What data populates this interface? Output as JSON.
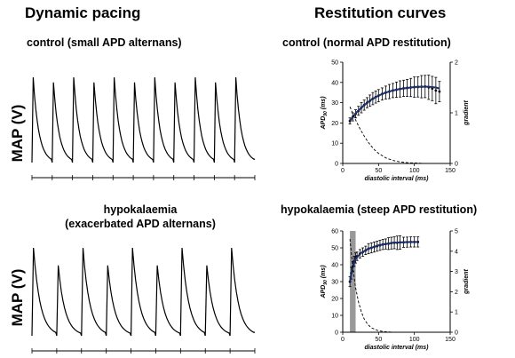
{
  "headings": {
    "left": "Dynamic pacing",
    "right": "Restitution curves"
  },
  "panels": {
    "top_left": "control (small APD alternans)",
    "bottom_left_line1": "hypokalaemia",
    "bottom_left_line2": "(exacerbated APD alternans)",
    "top_right": "control (normal APD restitution)",
    "bottom_right": "hypokalaemia (steep APD restitution)"
  },
  "traces": {
    "y_label": "MAP (V)",
    "control": {
      "beats": 11,
      "amplitude": 0.78,
      "alternans": 0.03
    },
    "hypokalaemia": {
      "beats": 9,
      "amplitude": 0.9,
      "alternans": 0.1
    }
  },
  "chart_data": [
    {
      "type": "scatter",
      "title": "control (normal APD restitution)",
      "xlabel": "diastolic interval (ms)",
      "ylabel": "APD90 (ms)",
      "ylabel_main": "APD",
      "ylabel_sub": "90",
      "y2label": "gradient",
      "xlim": [
        0,
        150
      ],
      "ylim": [
        0,
        50
      ],
      "y2lim": [
        0,
        2
      ],
      "x_ticks": [
        "0",
        "50",
        "100",
        "150"
      ],
      "y_ticks": [
        "0",
        "10",
        "20",
        "30",
        "40",
        "50"
      ],
      "y2_ticks": [
        "0",
        "1",
        "2"
      ],
      "series": [
        {
          "role": "apd_mean",
          "x": [
            10,
            14,
            18,
            22,
            26,
            30,
            34,
            38,
            42,
            46,
            50,
            55,
            60,
            65,
            70,
            75,
            80,
            85,
            90,
            95,
            100,
            105,
            110,
            115,
            120,
            125,
            130,
            135
          ],
          "y": [
            21,
            23,
            24.5,
            26,
            27.5,
            28.8,
            30,
            31,
            32,
            32.8,
            33.5,
            34.3,
            35,
            35.5,
            36,
            36.4,
            36.8,
            37.1,
            37.3,
            37.5,
            37.7,
            37.8,
            37.9,
            38,
            37.6,
            37,
            36,
            35.5
          ],
          "error": [
            1.5,
            2,
            2,
            2.2,
            2.5,
            2.5,
            2.5,
            2.8,
            3,
            3,
            3,
            3,
            3.2,
            3.5,
            3.5,
            3.8,
            4,
            4,
            4.2,
            4.5,
            5,
            5,
            5.5,
            5.5,
            6,
            6,
            6.5,
            5
          ]
        },
        {
          "role": "fit",
          "x": [
            10,
            20,
            30,
            40,
            50,
            60,
            70,
            80,
            90,
            100,
            110,
            120,
            130,
            135
          ],
          "y": [
            21,
            25.5,
            28.8,
            31.5,
            33.5,
            35,
            36,
            36.8,
            37.3,
            37.7,
            37.9,
            37.9,
            37.5,
            37
          ]
        },
        {
          "role": "gradient",
          "axis": "right",
          "x": [
            10,
            15,
            20,
            25,
            30,
            35,
            40,
            45,
            50,
            60,
            70,
            80,
            90,
            100,
            110
          ],
          "y": [
            1.12,
            0.95,
            0.8,
            0.66,
            0.54,
            0.43,
            0.34,
            0.26,
            0.2,
            0.11,
            0.06,
            0.03,
            0.015,
            0.008,
            0.004
          ]
        }
      ]
    },
    {
      "type": "scatter",
      "title": "hypokalaemia (steep APD restitution)",
      "xlabel": "diastolic interval (ms)",
      "ylabel": "APD90 (ms)",
      "ylabel_main": "APD",
      "ylabel_sub": "90",
      "y2label": "gradient",
      "xlim": [
        0,
        150
      ],
      "ylim": [
        0,
        60
      ],
      "y2lim": [
        0,
        5
      ],
      "x_ticks": [
        "0",
        "50",
        "100",
        "150"
      ],
      "y_ticks": [
        "0",
        "10",
        "20",
        "30",
        "40",
        "50",
        "60"
      ],
      "y2_ticks": [
        "0",
        "1",
        "2",
        "3",
        "4",
        "5"
      ],
      "shaded_region_x": [
        10,
        18
      ],
      "series": [
        {
          "role": "apd_mean",
          "x": [
            10,
            12,
            14,
            16,
            18,
            20,
            24,
            28,
            32,
            36,
            40,
            44,
            48,
            52,
            56,
            60,
            64,
            68,
            72,
            76,
            80,
            85,
            90,
            95,
            100,
            105
          ],
          "y": [
            30,
            35,
            39,
            42,
            44,
            45,
            46.5,
            47.5,
            48.5,
            49.5,
            50,
            50.5,
            51,
            51.5,
            52,
            52.3,
            52.5,
            52.8,
            53,
            53,
            53.2,
            53.3,
            53.4,
            53.5,
            53.5,
            53.5
          ],
          "error": [
            3,
            3.5,
            3,
            3,
            3,
            2.5,
            2.5,
            2.5,
            2.5,
            3,
            3,
            3,
            3,
            3,
            3,
            3,
            3.5,
            3.5,
            3.5,
            4,
            4,
            3,
            3,
            3,
            3,
            3
          ]
        },
        {
          "role": "fit",
          "x": [
            10,
            14,
            18,
            25,
            35,
            50,
            70,
            90,
            105
          ],
          "y": [
            30,
            39,
            43.5,
            46.8,
            49.3,
            51.5,
            53,
            53.4,
            53.5
          ]
        },
        {
          "role": "gradient",
          "axis": "right",
          "x": [
            10,
            14,
            18,
            22,
            26,
            30,
            35,
            40,
            50,
            60,
            70
          ],
          "y": [
            4.6,
            3.2,
            2.2,
            1.5,
            1.0,
            0.65,
            0.38,
            0.22,
            0.07,
            0.02,
            0.005
          ]
        }
      ]
    }
  ]
}
